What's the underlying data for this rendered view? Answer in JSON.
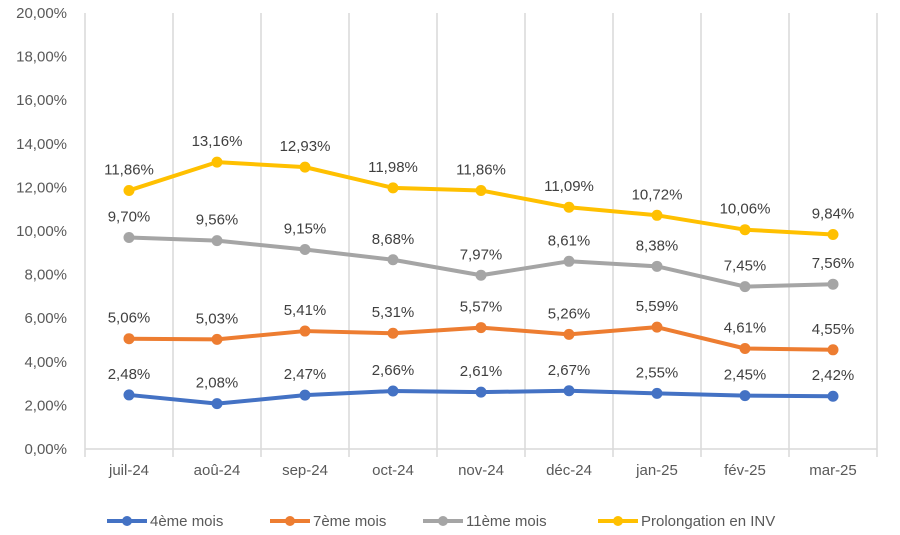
{
  "chart_data": {
    "type": "line",
    "title": "",
    "xlabel": "",
    "ylabel": "",
    "ylim": [
      0,
      20
    ],
    "y_tick_labels": [
      "0,00%",
      "2,00%",
      "4,00%",
      "6,00%",
      "8,00%",
      "10,00%",
      "12,00%",
      "14,00%",
      "16,00%",
      "18,00%",
      "20,00%"
    ],
    "categories": [
      "juil-24",
      "aoû-24",
      "sep-24",
      "oct-24",
      "nov-24",
      "déc-24",
      "jan-25",
      "fév-25",
      "mar-25"
    ],
    "grid": "vertical",
    "legend_position": "bottom",
    "series": [
      {
        "name": "4ème mois",
        "color": "#4472C4",
        "values": [
          2.48,
          2.08,
          2.47,
          2.66,
          2.61,
          2.67,
          2.55,
          2.45,
          2.42
        ],
        "labels": [
          "2,48%",
          "2,08%",
          "2,47%",
          "2,66%",
          "2,61%",
          "2,67%",
          "2,55%",
          "2,45%",
          "2,42%"
        ]
      },
      {
        "name": "7ème mois",
        "color": "#ED7D31",
        "values": [
          5.06,
          5.03,
          5.41,
          5.31,
          5.57,
          5.26,
          5.59,
          4.61,
          4.55
        ],
        "labels": [
          "5,06%",
          "5,03%",
          "5,41%",
          "5,31%",
          "5,57%",
          "5,26%",
          "5,59%",
          "4,61%",
          "4,55%"
        ]
      },
      {
        "name": "11ème mois",
        "color": "#A5A5A5",
        "values": [
          9.7,
          9.56,
          9.15,
          8.68,
          7.97,
          8.61,
          8.38,
          7.45,
          7.56
        ],
        "labels": [
          "9,70%",
          "9,56%",
          "9,15%",
          "8,68%",
          "7,97%",
          "8,61%",
          "8,38%",
          "7,45%",
          "7,56%"
        ]
      },
      {
        "name": "Prolongation en INV",
        "color": "#FFC000",
        "values": [
          11.86,
          13.16,
          12.93,
          11.98,
          11.86,
          11.09,
          10.72,
          10.06,
          9.84
        ],
        "labels": [
          "11,86%",
          "13,16%",
          "12,93%",
          "11,98%",
          "11,86%",
          "11,09%",
          "10,72%",
          "10,06%",
          "9,84%"
        ]
      }
    ]
  }
}
